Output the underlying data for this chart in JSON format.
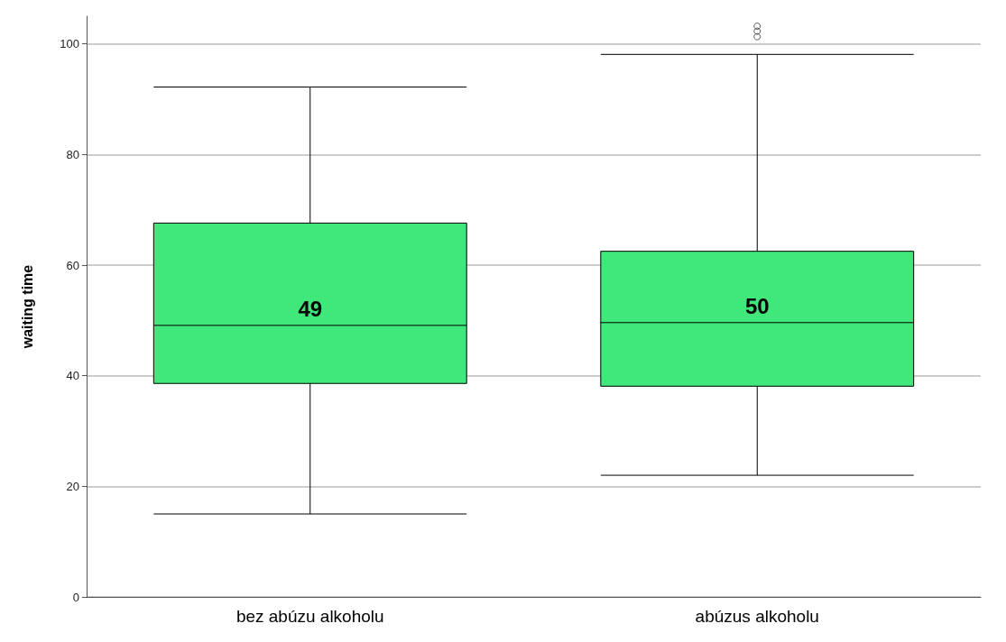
{
  "chart_data": {
    "type": "box",
    "ylabel": "waiting time",
    "categories": [
      "bez abúzu alkoholu",
      "abúzus alkoholu"
    ],
    "color": "#40e87c",
    "boxes": [
      {
        "low": 15,
        "q1": 38.6,
        "median": 49.1,
        "q3": 67.6,
        "high": 92.2
      },
      {
        "low": 22,
        "q1": 38.1,
        "median": 49.6,
        "q3": 62.5,
        "high": 98.1,
        "outliers": [
          101.3,
          102.3,
          103.2
        ]
      }
    ],
    "ylim": [
      0,
      105
    ],
    "yticks": [
      0,
      20,
      40,
      60,
      80,
      100
    ],
    "grid": "y",
    "legend": false,
    "annotations": [
      {
        "text": "49",
        "x": "bez abúzu alkoholu",
        "y": 49.1
      },
      {
        "text": "50",
        "x": "abúzus alkoholu",
        "y": 49.6
      }
    ]
  }
}
